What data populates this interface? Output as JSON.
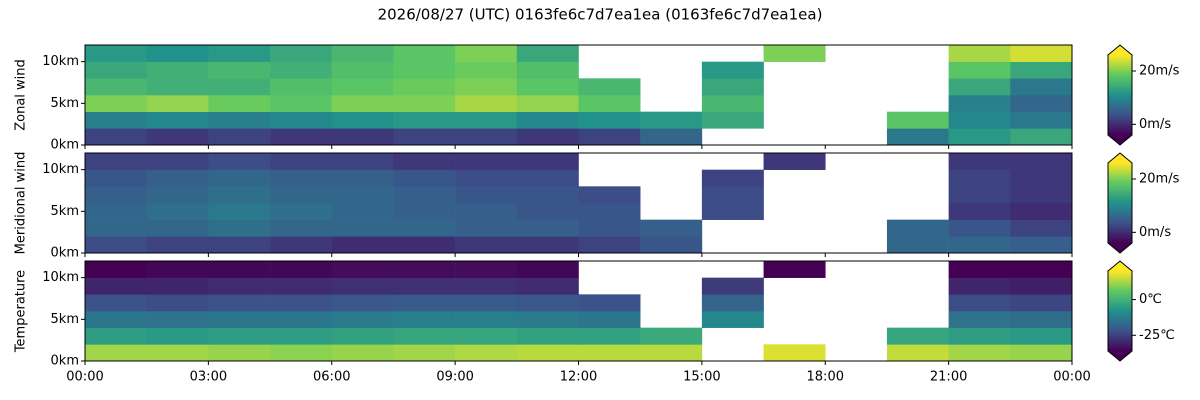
{
  "title": "2026/08/27 (UTC) 0163fe6c7d7ea1ea (0163fe6c7d7ea1ea)",
  "chart_data": [
    {
      "type": "heatmap",
      "ylabel": "Zonal wind",
      "colormap": "viridis",
      "x_bins": [
        0,
        1.5,
        3,
        4.5,
        6,
        7.5,
        9,
        10.5,
        12,
        13.5,
        15,
        16.5,
        18,
        19.5,
        21,
        22.5,
        24
      ],
      "y_bins": [
        0,
        2,
        4,
        6,
        8,
        10,
        12
      ],
      "values": [
        [
          2,
          1,
          2,
          1,
          1,
          2,
          2,
          1,
          2,
          6,
          null,
          null,
          null,
          8,
          12,
          14
        ],
        [
          9,
          10,
          9,
          10,
          11,
          12,
          12,
          10,
          11,
          12,
          14,
          null,
          null,
          18,
          10,
          8
        ],
        [
          20,
          21,
          19,
          18,
          20,
          20,
          22,
          21,
          18,
          null,
          16,
          null,
          null,
          null,
          9,
          6
        ],
        [
          16,
          15,
          15,
          17,
          18,
          19,
          20,
          18,
          16,
          null,
          14,
          null,
          null,
          null,
          14,
          8
        ],
        [
          14,
          15,
          16,
          15,
          17,
          18,
          19,
          17,
          null,
          null,
          12,
          null,
          null,
          null,
          18,
          14
        ],
        [
          12,
          11,
          12,
          14,
          16,
          18,
          20,
          14,
          null,
          null,
          null,
          20,
          null,
          null,
          22,
          24
        ]
      ],
      "xlim": [
        0,
        24
      ],
      "ylim": [
        0,
        12
      ],
      "yticks": [
        {
          "value": 0,
          "label": "0km"
        },
        {
          "value": 5,
          "label": "5km"
        },
        {
          "value": 10,
          "label": "10km"
        }
      ],
      "colorbar": {
        "clim": [
          -4,
          26
        ],
        "extend": "both",
        "ticks": [
          {
            "value": 0,
            "label": "0m/s"
          },
          {
            "value": 20,
            "label": "20m/s"
          }
        ]
      }
    },
    {
      "type": "heatmap",
      "ylabel": "Meridional wind",
      "colormap": "viridis",
      "x_bins": [
        0,
        1.5,
        3,
        4.5,
        6,
        7.5,
        9,
        10.5,
        12,
        13.5,
        15,
        16.5,
        18,
        19.5,
        21,
        22.5,
        24
      ],
      "y_bins": [
        0,
        2,
        4,
        6,
        8,
        10,
        12
      ],
      "values": [
        [
          3,
          2,
          2,
          1,
          0,
          0,
          1,
          1,
          2,
          4,
          null,
          null,
          null,
          6,
          6,
          5
        ],
        [
          6,
          6,
          7,
          6,
          6,
          6,
          5,
          5,
          4,
          5,
          null,
          null,
          null,
          6,
          4,
          2
        ],
        [
          6,
          7,
          8,
          7,
          6,
          5,
          5,
          4,
          4,
          null,
          3,
          null,
          null,
          null,
          1,
          0
        ],
        [
          5,
          6,
          7,
          6,
          6,
          5,
          4,
          4,
          3,
          null,
          3,
          null,
          null,
          null,
          2,
          1
        ],
        [
          4,
          5,
          6,
          5,
          5,
          4,
          3,
          3,
          null,
          null,
          2,
          null,
          null,
          null,
          2,
          1
        ],
        [
          2,
          2,
          3,
          2,
          2,
          1,
          1,
          1,
          null,
          null,
          null,
          1,
          null,
          null,
          1,
          1
        ]
      ],
      "xlim": [
        0,
        24
      ],
      "ylim": [
        0,
        12
      ],
      "yticks": [
        {
          "value": 0,
          "label": "0km"
        },
        {
          "value": 5,
          "label": "5km"
        },
        {
          "value": 10,
          "label": "10km"
        }
      ],
      "colorbar": {
        "clim": [
          -4,
          26
        ],
        "extend": "both",
        "ticks": [
          {
            "value": 0,
            "label": "0m/s"
          },
          {
            "value": 20,
            "label": "20m/s"
          }
        ]
      }
    },
    {
      "type": "heatmap",
      "ylabel": "Temperature",
      "colormap": "viridis",
      "x_bins": [
        0,
        1.5,
        3,
        4.5,
        6,
        7.5,
        9,
        10.5,
        12,
        13.5,
        15,
        16.5,
        18,
        19.5,
        21,
        22.5,
        24
      ],
      "y_bins": [
        0,
        2,
        4,
        6,
        8,
        10,
        12
      ],
      "values": [
        [
          12,
          12,
          11,
          10,
          11,
          12,
          13,
          14,
          14,
          14,
          null,
          17,
          null,
          15,
          12,
          11
        ],
        [
          -5,
          -6,
          -5,
          -5,
          -4,
          -3,
          -3,
          -4,
          -4,
          -2,
          null,
          null,
          null,
          -3,
          -5,
          -6
        ],
        [
          -14,
          -15,
          -14,
          -14,
          -13,
          -12,
          -12,
          -13,
          -14,
          null,
          -10,
          null,
          null,
          null,
          -15,
          -16
        ],
        [
          -22,
          -23,
          -22,
          -22,
          -21,
          -20,
          -20,
          -21,
          -22,
          null,
          -18,
          null,
          null,
          null,
          -23,
          -24
        ],
        [
          -30,
          -30,
          -29,
          -29,
          -28,
          -28,
          -28,
          -29,
          null,
          null,
          -26,
          null,
          null,
          null,
          -30,
          -31
        ],
        [
          -36,
          -35,
          -35,
          -35,
          -34,
          -34,
          -34,
          -35,
          null,
          null,
          null,
          -36,
          null,
          null,
          -36,
          -36
        ]
      ],
      "xlim": [
        0,
        24
      ],
      "ylim": [
        0,
        12
      ],
      "xticks": [
        {
          "value": 0,
          "label": "00:00"
        },
        {
          "value": 3,
          "label": "03:00"
        },
        {
          "value": 6,
          "label": "06:00"
        },
        {
          "value": 9,
          "label": "09:00"
        },
        {
          "value": 12,
          "label": "12:00"
        },
        {
          "value": 15,
          "label": "15:00"
        },
        {
          "value": 18,
          "label": "18:00"
        },
        {
          "value": 21,
          "label": "21:00"
        },
        {
          "value": 24,
          "label": "00:00"
        }
      ],
      "yticks": [
        {
          "value": 0,
          "label": "0km"
        },
        {
          "value": 5,
          "label": "5km"
        },
        {
          "value": 10,
          "label": "10km"
        }
      ],
      "colorbar": {
        "clim": [
          -36,
          20
        ],
        "extend": "both",
        "ticks": [
          {
            "value": 0,
            "label": "0℃"
          },
          {
            "value": -25,
            "label": "-25℃"
          }
        ]
      }
    }
  ]
}
